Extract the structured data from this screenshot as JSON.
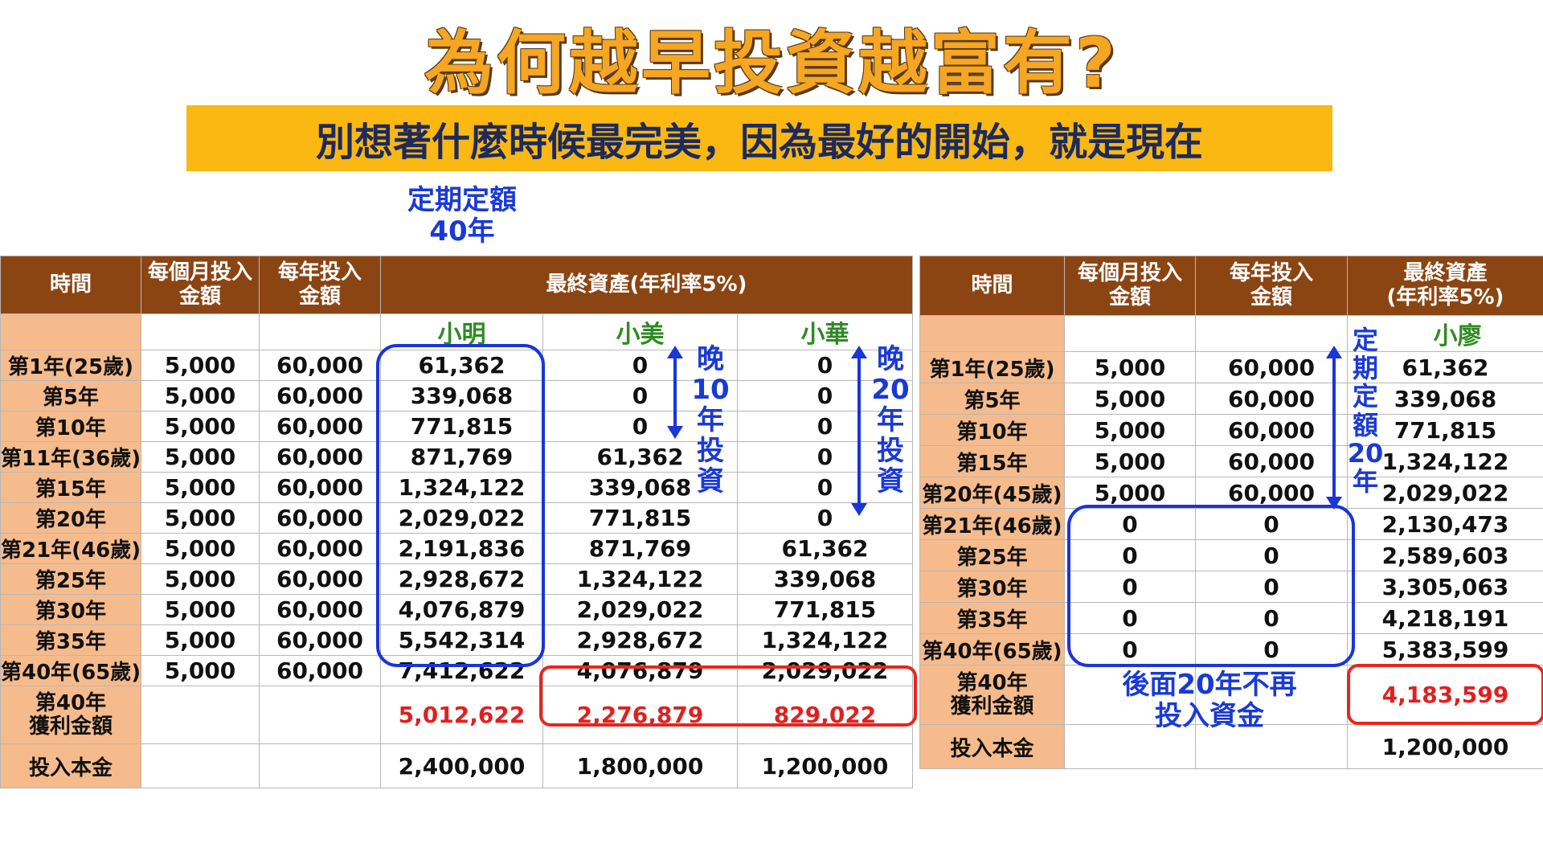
{
  "title": "為何越早投資越富有?",
  "subtitle": "別想著什麼時候最完美，因為最好的開始，就是現在",
  "label_top": [
    "定期定額",
    "40年"
  ],
  "left_table": {
    "headers": [
      "時間",
      "每個月投入金額",
      "每年投入金額",
      "最終資產(年利率5%)"
    ],
    "header_lines": {
      "monthly": [
        "每個月投入",
        "金額"
      ],
      "yearly": [
        "每年投入",
        "金額"
      ]
    },
    "names": [
      "小明",
      "小美",
      "小華"
    ],
    "rows": [
      {
        "t": "第1年(25歲)",
        "m": "5,000",
        "y": "60,000",
        "a": "61,362",
        "b": "0",
        "c": "0"
      },
      {
        "t": "第5年",
        "m": "5,000",
        "y": "60,000",
        "a": "339,068",
        "b": "0",
        "c": "0"
      },
      {
        "t": "第10年",
        "m": "5,000",
        "y": "60,000",
        "a": "771,815",
        "b": "0",
        "c": "0"
      },
      {
        "t": "第11年(36歲)",
        "m": "5,000",
        "y": "60,000",
        "a": "871,769",
        "b": "61,362",
        "c": "0"
      },
      {
        "t": "第15年",
        "m": "5,000",
        "y": "60,000",
        "a": "1,324,122",
        "b": "339,068",
        "c": "0"
      },
      {
        "t": "第20年",
        "m": "5,000",
        "y": "60,000",
        "a": "2,029,022",
        "b": "771,815",
        "c": "0"
      },
      {
        "t": "第21年(46歲)",
        "m": "5,000",
        "y": "60,000",
        "a": "2,191,836",
        "b": "871,769",
        "c": "61,362"
      },
      {
        "t": "第25年",
        "m": "5,000",
        "y": "60,000",
        "a": "2,928,672",
        "b": "1,324,122",
        "c": "339,068"
      },
      {
        "t": "第30年",
        "m": "5,000",
        "y": "60,000",
        "a": "4,076,879",
        "b": "2,029,022",
        "c": "771,815"
      },
      {
        "t": "第35年",
        "m": "5,000",
        "y": "60,000",
        "a": "5,542,314",
        "b": "2,928,672",
        "c": "1,324,122"
      },
      {
        "t": "第40年(65歲)",
        "m": "5,000",
        "y": "60,000",
        "a": "7,412,622",
        "b": "4,076,879",
        "c": "2,029,022"
      }
    ],
    "profit_label": [
      "第40年",
      "獲利金額"
    ],
    "profit": [
      "5,012,622",
      "2,276,879",
      "829,022"
    ],
    "principal_label": "投入本金",
    "principal": [
      "2,400,000",
      "1,800,000",
      "1,200,000"
    ],
    "late10": [
      "晚",
      "10",
      "年",
      "投",
      "資"
    ],
    "late20": [
      "晚",
      "20",
      "年",
      "投",
      "資"
    ]
  },
  "right_table": {
    "headers": [
      "時間",
      "每個月投入金額",
      "每年投入金額",
      "最終資產(年利率5%)"
    ],
    "header_lines": {
      "monthly": [
        "每個月投入",
        "金額"
      ],
      "yearly": [
        "每年投入",
        "金額"
      ],
      "final": [
        "最終資產",
        "(年利率5%)"
      ]
    },
    "name": "小廖",
    "rows": [
      {
        "t": "第1年(25歲)",
        "m": "5,000",
        "y": "60,000",
        "a": "61,362"
      },
      {
        "t": "第5年",
        "m": "5,000",
        "y": "60,000",
        "a": "339,068"
      },
      {
        "t": "第10年",
        "m": "5,000",
        "y": "60,000",
        "a": "771,815"
      },
      {
        "t": "第15年",
        "m": "5,000",
        "y": "60,000",
        "a": "1,324,122"
      },
      {
        "t": "第20年(45歲)",
        "m": "5,000",
        "y": "60,000",
        "a": "2,029,022"
      },
      {
        "t": "第21年(46歲)",
        "m": "0",
        "y": "0",
        "a": "2,130,473"
      },
      {
        "t": "第25年",
        "m": "0",
        "y": "0",
        "a": "2,589,603"
      },
      {
        "t": "第30年",
        "m": "0",
        "y": "0",
        "a": "3,305,063"
      },
      {
        "t": "第35年",
        "m": "0",
        "y": "0",
        "a": "4,218,191"
      },
      {
        "t": "第40年(65歲)",
        "m": "0",
        "y": "0",
        "a": "5,383,599"
      }
    ],
    "profit_label": [
      "第40年",
      "獲利金額"
    ],
    "profit": "4,183,599",
    "principal_label": "投入本金",
    "principal": "1,200,000",
    "fixed20": [
      "定",
      "期",
      "定",
      "額",
      "20",
      "年"
    ],
    "note": [
      "後面20年不再",
      "投入資金"
    ]
  }
}
